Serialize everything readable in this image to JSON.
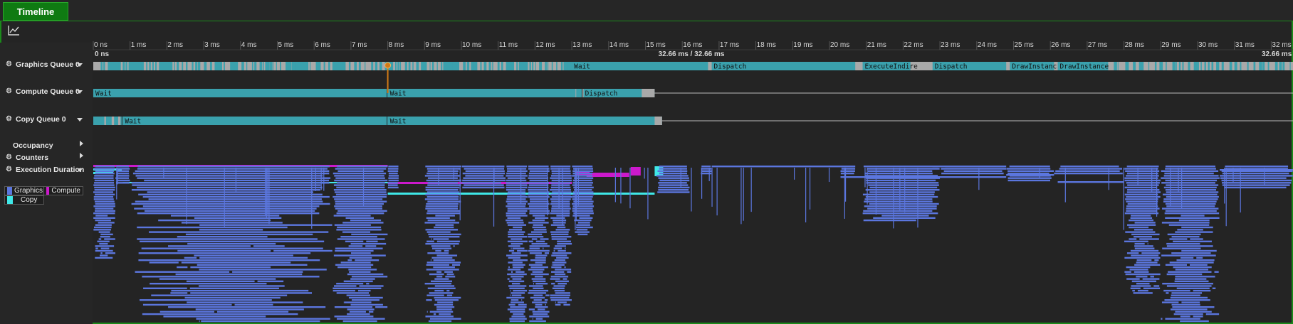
{
  "tab": {
    "title": "Timeline"
  },
  "toolbar": {
    "chart_icon": "line-chart-icon"
  },
  "ruler": {
    "ticks": [
      "0 ns",
      "1 ms",
      "2 ms",
      "3 ms",
      "4 ms",
      "5 ms",
      "6 ms",
      "7 ms",
      "8 ms",
      "9 ms",
      "10 ms",
      "11 ms",
      "12 ms",
      "13 ms",
      "14 ms",
      "15 ms",
      "16 ms",
      "17 ms",
      "18 ms",
      "19 ms",
      "20 ms",
      "21 ms",
      "22 ms",
      "23 ms",
      "24 ms",
      "25 ms",
      "26 ms",
      "27 ms",
      "28 ms",
      "29 ms",
      "30 ms",
      "31 ms",
      "32 ms"
    ],
    "start_label": "0 ns",
    "cursor_label": "32.66 ms / 32.66 ms",
    "end_label": "32.66 ms",
    "total_ms": 32.66
  },
  "rows": {
    "graphics_queue": "Graphics Queue 0",
    "compute_queue": "Compute Queue 0",
    "copy_queue": "Copy Queue 0",
    "occupancy": "Occupancy",
    "counters": "Counters",
    "execution_duration": "Execution Duration"
  },
  "legend": {
    "graphics": "Graphics",
    "compute": "Compute",
    "copy": "Copy"
  },
  "colors": {
    "graphics": "#5b76de",
    "compute": "#cc19cc",
    "copy": "#3fe8e8",
    "queue_bar": "#3aa1ad",
    "queue_gap": "#a9a9a9",
    "accent_green": "#0f7a12"
  },
  "queues": {
    "graphics": {
      "labels": [
        {
          "text": "Wait",
          "start": 13.0
        },
        {
          "text": "Dispatch",
          "start": 16.8
        },
        {
          "text": "ExecuteIndire",
          "start": 20.9
        },
        {
          "text": "Dispatch",
          "start": 22.8
        },
        {
          "text": "DrawInstanc",
          "start": 24.9
        },
        {
          "text": "DrawInstance",
          "start": 26.2
        }
      ]
    },
    "compute": {
      "labels": [
        {
          "text": "Wait",
          "start": 0.0
        },
        {
          "text": "Wait",
          "start": 8.0
        },
        {
          "text": "Dispatch",
          "start": 13.3
        }
      ]
    },
    "copy": {
      "labels": [
        {
          "text": "Wait",
          "start": 0.8
        },
        {
          "text": "Wait",
          "start": 8.0
        }
      ]
    }
  }
}
